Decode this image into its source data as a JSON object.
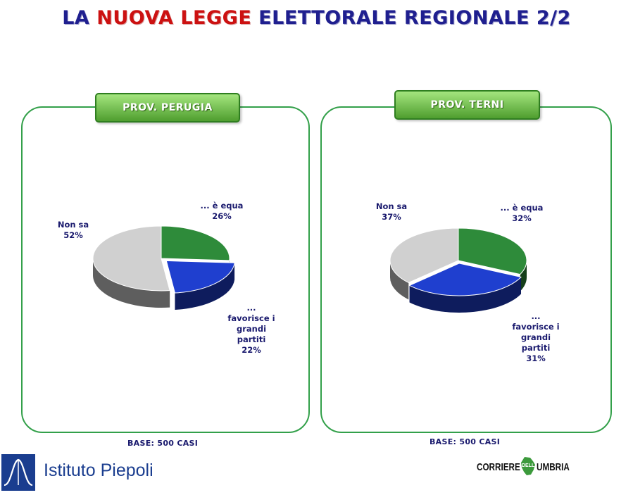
{
  "title": {
    "part1": "LA",
    "part2": "NUOVA LEGGE",
    "part3": "ELETTORALE REGIONALE 2/2"
  },
  "colors": {
    "equa": "#2e8b3a",
    "favorisce": "#1f3fcf",
    "non_sa": "#d0d0d0",
    "panel_border": "#33a04a",
    "tab_fill": "#6fbe4a",
    "text": "#1a1a6e"
  },
  "chart_data": [
    {
      "type": "pie",
      "title": "PROV. PERUGIA",
      "note": "BASE: 500 CASI",
      "slices": [
        {
          "key": "equa",
          "label_lines": [
            "... è equa"
          ],
          "value": 26,
          "value_label": "26%"
        },
        {
          "key": "favorisce",
          "label_lines": [
            "...",
            "favorisce i",
            "grandi",
            "partiti"
          ],
          "value": 22,
          "value_label": "22%"
        },
        {
          "key": "non_sa",
          "label_lines": [
            "Non sa"
          ],
          "value": 52,
          "value_label": "52%"
        }
      ]
    },
    {
      "type": "pie",
      "title": "PROV. TERNI",
      "note": "BASE: 500 CASI",
      "slices": [
        {
          "key": "equa",
          "label_lines": [
            "... è equa"
          ],
          "value": 32,
          "value_label": "32%"
        },
        {
          "key": "favorisce",
          "label_lines": [
            "...",
            "favorisce i",
            "grandi",
            "partiti"
          ],
          "value": 31,
          "value_label": "31%"
        },
        {
          "key": "non_sa",
          "label_lines": [
            "Non sa"
          ],
          "value": 37,
          "value_label": "37%"
        }
      ]
    }
  ],
  "logos": {
    "left": {
      "name": "Istituto Piepoli",
      "icon": "piepoli-logo-icon"
    },
    "right": {
      "word1": "CORRIERE",
      "word2": "DELL",
      "word3": "UMBRIA",
      "icon": "umbria-map-icon"
    }
  }
}
